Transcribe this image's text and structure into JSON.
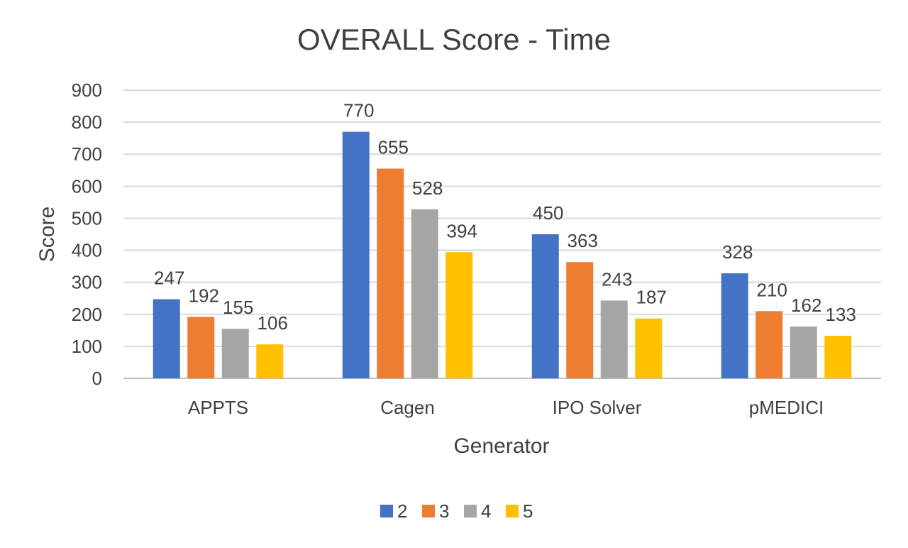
{
  "chart_data": {
    "type": "bar",
    "title": "OVERALL Score - Time",
    "xlabel": "Generator",
    "ylabel": "Score",
    "categories": [
      "APPTS",
      "Cagen",
      "IPO Solver",
      "pMEDICI"
    ],
    "series": [
      {
        "name": "2",
        "color": "#4472C4",
        "values": [
          247,
          770,
          450,
          328
        ]
      },
      {
        "name": "3",
        "color": "#ED7D31",
        "values": [
          192,
          655,
          363,
          210
        ]
      },
      {
        "name": "4",
        "color": "#A5A5A5",
        "values": [
          155,
          528,
          243,
          162
        ]
      },
      {
        "name": "5",
        "color": "#FFC000",
        "values": [
          106,
          394,
          187,
          133
        ]
      }
    ],
    "ylim": [
      0,
      900
    ],
    "yticks": [
      0,
      100,
      200,
      300,
      400,
      500,
      600,
      700,
      800,
      900
    ],
    "grid": true,
    "legend_position": "bottom",
    "data_labels": true
  }
}
